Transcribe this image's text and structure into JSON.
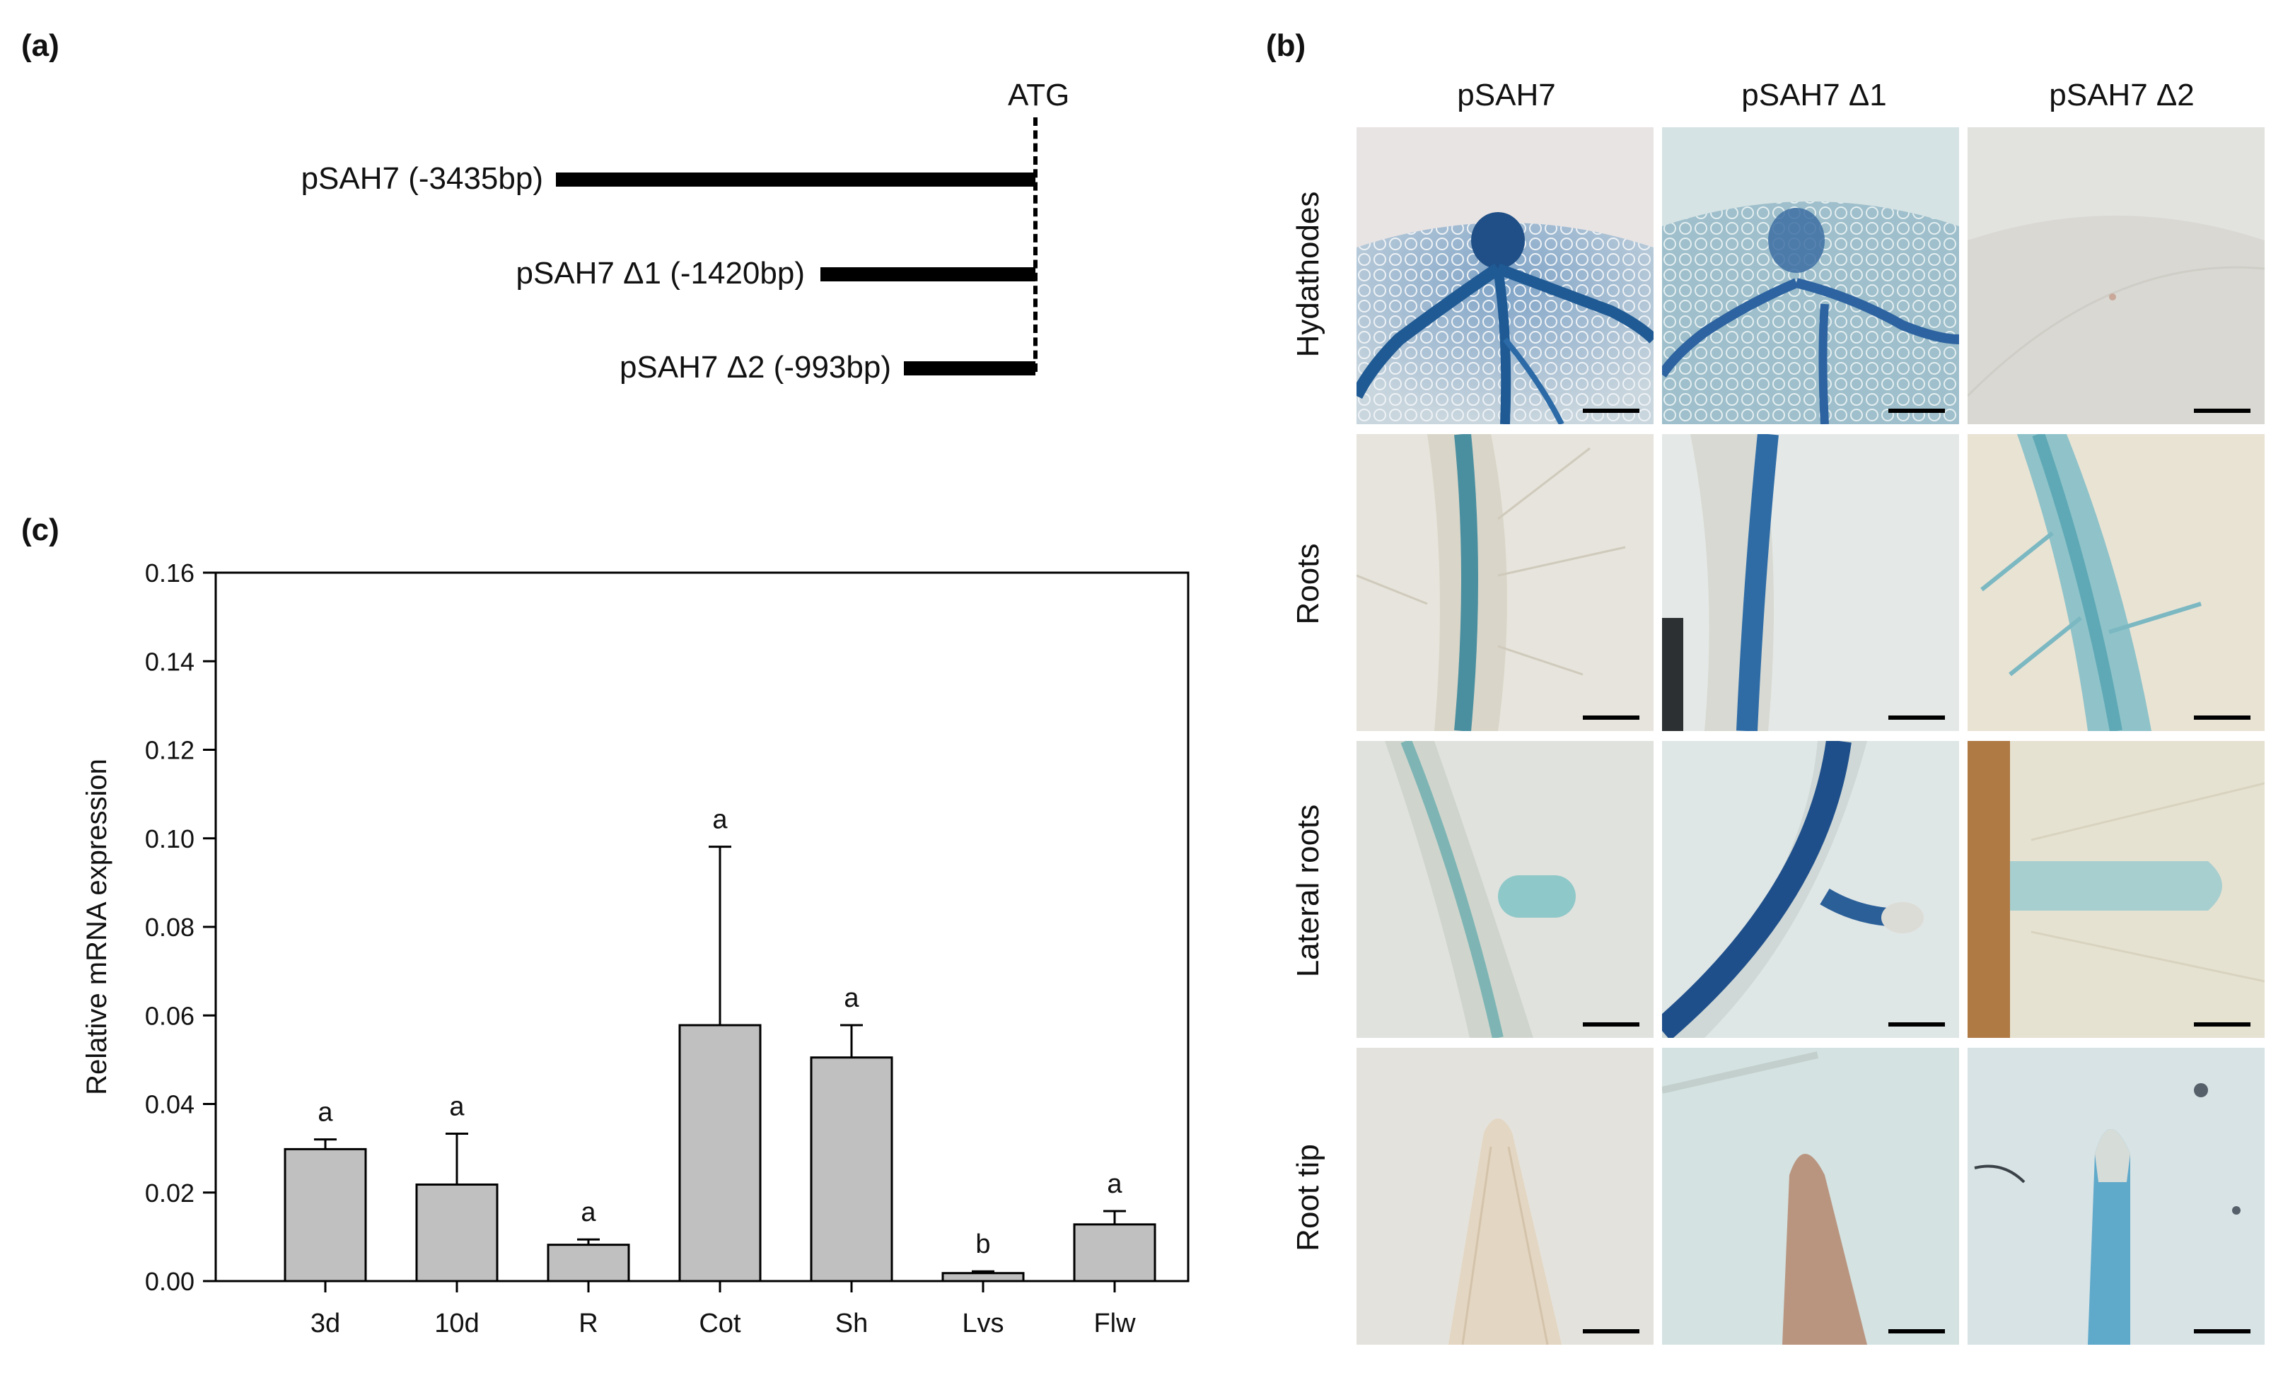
{
  "panel_a": {
    "label": "(a)",
    "atg": "ATG",
    "constructs": [
      {
        "name": "pSAH7 (-3435bp)"
      },
      {
        "name": "pSAH7 Δ1 (-1420bp)"
      },
      {
        "name": "pSAH7 Δ2 (-993bp)"
      }
    ]
  },
  "panel_b": {
    "label": "(b)",
    "columns": [
      "pSAH7",
      "pSAH7 Δ1",
      "pSAH7 Δ2"
    ],
    "rows": [
      "Hydathodes",
      "Roots",
      "Lateral roots",
      "Root tip"
    ]
  },
  "panel_c": {
    "label": "(c)"
  },
  "chart_data": {
    "type": "bar",
    "categories": [
      "3d",
      "10d",
      "R",
      "Cot",
      "Sh",
      "Lvs",
      "Flw"
    ],
    "values": [
      0.0298,
      0.0218,
      0.0082,
      0.0578,
      0.0505,
      0.0018,
      0.0128
    ],
    "errors": [
      0.0022,
      0.0115,
      0.0012,
      0.0403,
      0.0073,
      0.0004,
      0.003
    ],
    "significance": [
      "a",
      "a",
      "a",
      "a",
      "a",
      "b",
      "a"
    ],
    "ylabel": "Relative mRNA expression",
    "xlabel": "",
    "ylim": [
      0,
      0.16
    ],
    "yticks": [
      "0.00",
      "0.02",
      "0.04",
      "0.06",
      "0.08",
      "0.10",
      "0.12",
      "0.14",
      "0.16"
    ],
    "bar_color": "#c0c0c0",
    "grid": false
  }
}
